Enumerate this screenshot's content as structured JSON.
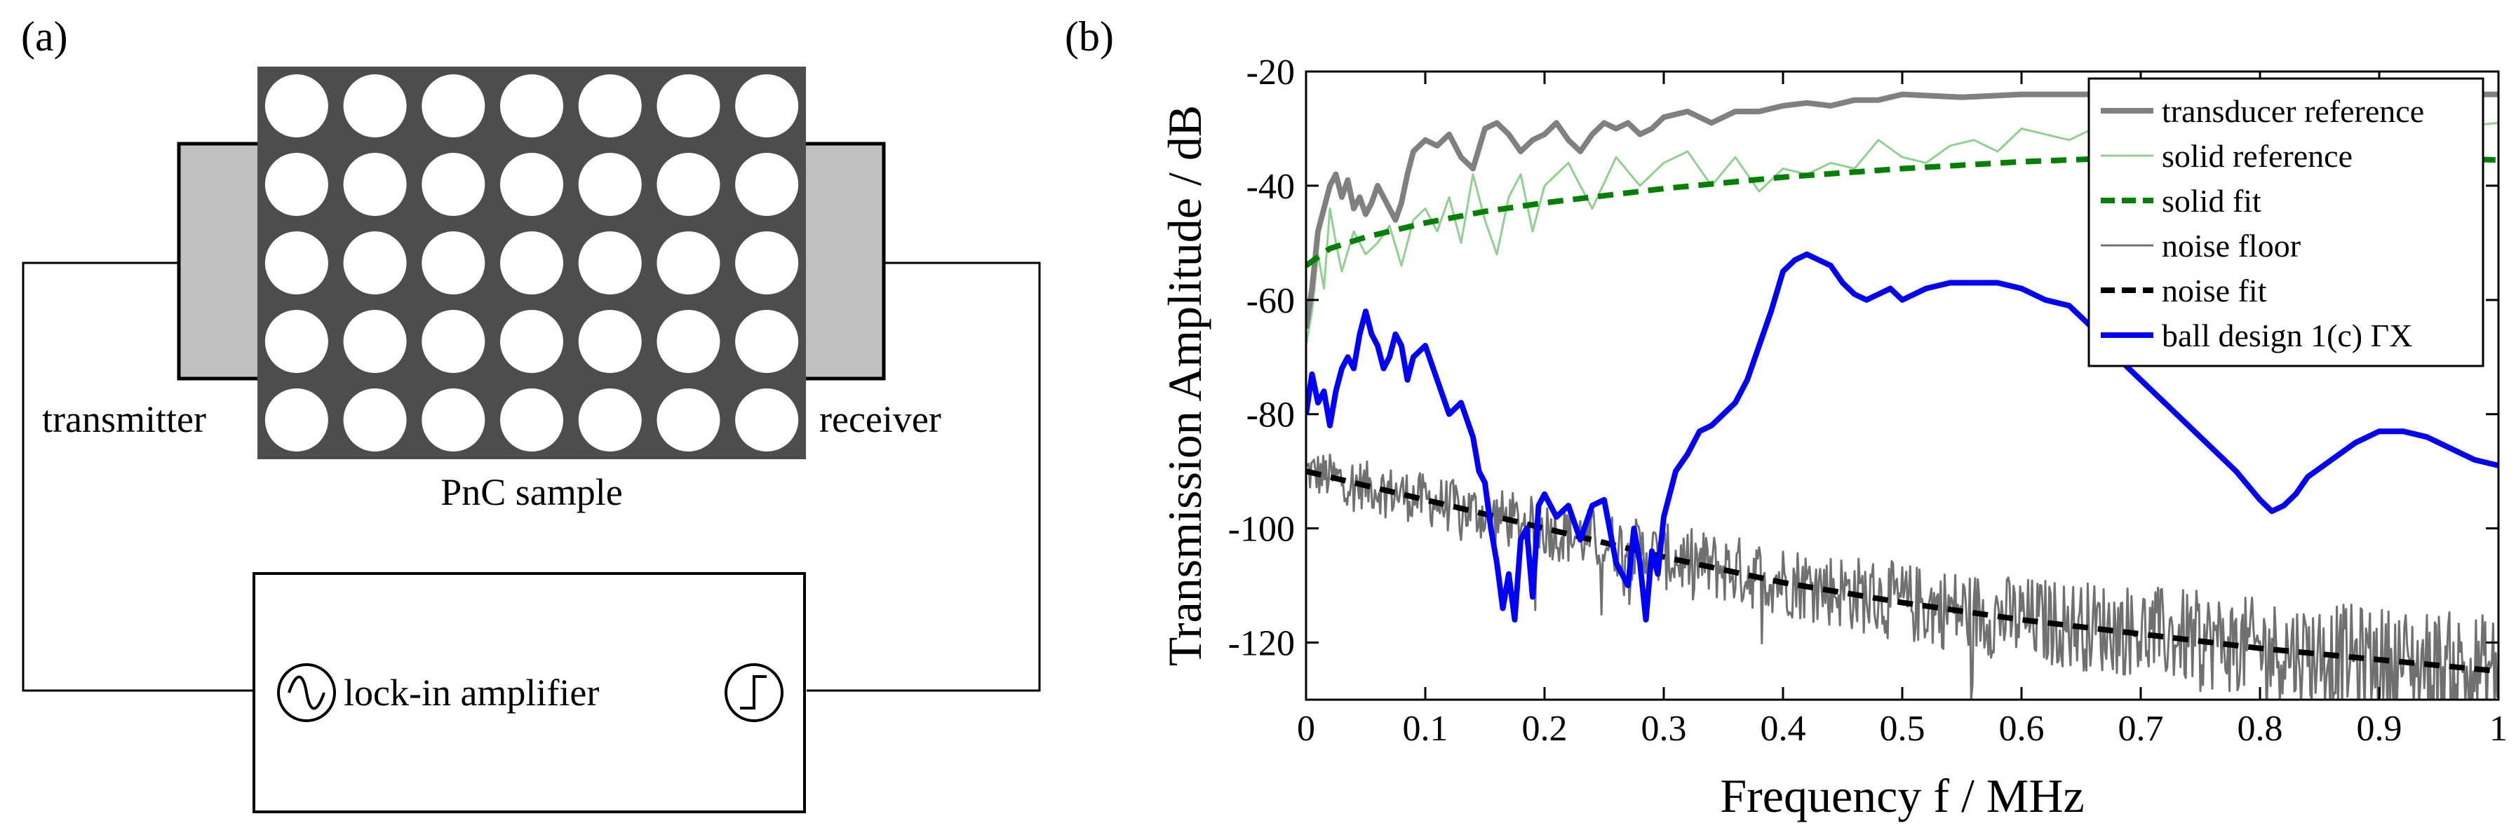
{
  "panel_a": {
    "label": "(a)",
    "transmitter_label": "transmitter",
    "receiver_label": "receiver",
    "sample_label": "PnC sample",
    "amplifier_label": "lock-in amplifier",
    "lattice_rows": 5,
    "lattice_cols": 7,
    "colors": {
      "sample": "#4d4d4d",
      "transducer": "#c0c0c0",
      "hole": "#ffffff",
      "line": "#000000"
    }
  },
  "panel_b": {
    "label": "(b)"
  },
  "chart_data": {
    "type": "line",
    "title": "",
    "xlabel": "Frequency f / MHz",
    "ylabel": "Transmission Amplitude  / dB",
    "xlim": [
      0,
      1
    ],
    "ylim": [
      -130,
      -20
    ],
    "xticks": [
      0,
      0.1,
      0.2,
      0.3,
      0.4,
      0.5,
      0.6,
      0.7,
      0.8,
      0.9,
      1
    ],
    "xtick_labels": [
      "0",
      "0.1",
      "0.2",
      "0.3",
      "0.4",
      "0.5",
      "0.6",
      "0.7",
      "0.8",
      "0.9",
      "1"
    ],
    "yticks": [
      -20,
      -40,
      -60,
      -80,
      -100,
      -120
    ],
    "ytick_labels": [
      "-20",
      "-40",
      "-60",
      "-80",
      "-100",
      "-120"
    ],
    "grid": false,
    "legend_position": "top-right",
    "series": [
      {
        "name": "transducer reference",
        "color": "#808080",
        "style": "solid",
        "width": "thick",
        "x": [
          0,
          0.005,
          0.01,
          0.015,
          0.02,
          0.025,
          0.03,
          0.035,
          0.04,
          0.045,
          0.05,
          0.055,
          0.06,
          0.065,
          0.07,
          0.075,
          0.08,
          0.085,
          0.09,
          0.1,
          0.11,
          0.12,
          0.13,
          0.14,
          0.15,
          0.16,
          0.17,
          0.18,
          0.19,
          0.2,
          0.21,
          0.22,
          0.23,
          0.24,
          0.25,
          0.26,
          0.27,
          0.28,
          0.29,
          0.3,
          0.32,
          0.34,
          0.36,
          0.38,
          0.4,
          0.42,
          0.44,
          0.46,
          0.48,
          0.5,
          0.55,
          0.6,
          0.65,
          0.7,
          0.75,
          0.8,
          0.85,
          0.9,
          0.95,
          1.0
        ],
        "y": [
          -65,
          -58,
          -48,
          -44,
          -40,
          -38,
          -42,
          -39,
          -44,
          -42,
          -45,
          -43,
          -40,
          -42,
          -44,
          -46,
          -43,
          -38,
          -34,
          -32,
          -33,
          -31,
          -35,
          -37,
          -30,
          -29,
          -31,
          -34,
          -32,
          -31,
          -29,
          -32,
          -34,
          -31,
          -29,
          -30,
          -29,
          -31,
          -30,
          -28,
          -27,
          -29,
          -27,
          -27,
          -26,
          -25.5,
          -26,
          -25,
          -25,
          -24,
          -24.5,
          -24,
          -24,
          -24,
          -24,
          -24,
          -24,
          -24,
          -24,
          -24
        ]
      },
      {
        "name": "solid reference",
        "color": "#90d090",
        "style": "solid",
        "width": "thin",
        "x": [
          0,
          0.005,
          0.01,
          0.015,
          0.02,
          0.025,
          0.03,
          0.04,
          0.05,
          0.06,
          0.07,
          0.08,
          0.09,
          0.1,
          0.11,
          0.12,
          0.13,
          0.14,
          0.15,
          0.16,
          0.17,
          0.18,
          0.19,
          0.2,
          0.22,
          0.24,
          0.26,
          0.28,
          0.3,
          0.32,
          0.34,
          0.36,
          0.38,
          0.4,
          0.42,
          0.44,
          0.46,
          0.48,
          0.5,
          0.52,
          0.54,
          0.56,
          0.58,
          0.6,
          0.62,
          0.64,
          0.66,
          0.7,
          0.75,
          0.8,
          0.85,
          0.9,
          0.95,
          1.0
        ],
        "y": [
          -68,
          -62,
          -52,
          -58,
          -44,
          -50,
          -55,
          -48,
          -52,
          -50,
          -47,
          -54,
          -46,
          -44,
          -48,
          -42,
          -50,
          -38,
          -46,
          -52,
          -42,
          -38,
          -48,
          -40,
          -36,
          -44,
          -35,
          -40,
          -36,
          -34,
          -40,
          -35,
          -41,
          -37,
          -38,
          -36,
          -37,
          -32,
          -35,
          -36,
          -33,
          -32,
          -34,
          -30,
          -31,
          -32,
          -30,
          -31,
          -30,
          -30,
          -30,
          -29,
          -30,
          -29
        ]
      },
      {
        "name": "solid fit",
        "color": "#008000",
        "style": "dashed",
        "width": "thick",
        "x": [
          0,
          0.02,
          0.05,
          0.1,
          0.15,
          0.2,
          0.3,
          0.4,
          0.5,
          0.6,
          0.7,
          0.8,
          0.9,
          1.0
        ],
        "y": [
          -54,
          -51,
          -49,
          -46.5,
          -44.5,
          -43,
          -40.5,
          -38.5,
          -37,
          -35.8,
          -35,
          -34.5,
          -34.8,
          -35.5
        ]
      },
      {
        "name": "noise floor",
        "color": "#707070",
        "style": "noisy",
        "width": "thin",
        "x": [
          0,
          0.1,
          0.2,
          0.3,
          0.4,
          0.5,
          0.6,
          0.7,
          0.8,
          0.9,
          1.0
        ],
        "y": [
          -90,
          -95,
          -100,
          -105,
          -109,
          -113,
          -116,
          -118,
          -121,
          -123,
          -125
        ]
      },
      {
        "name": "noise fit",
        "color": "#000000",
        "style": "dashed",
        "width": "thick",
        "x": [
          0,
          0.1,
          0.2,
          0.3,
          0.4,
          0.5,
          0.6,
          0.7,
          0.8,
          0.9,
          1.0
        ],
        "y": [
          -90,
          -95,
          -100,
          -105,
          -109.5,
          -113,
          -116,
          -118.5,
          -121,
          -123,
          -125
        ]
      },
      {
        "name": "ball design 1(c) ΓX",
        "color": "#0000ff",
        "style": "solid",
        "width": "thick",
        "x": [
          0,
          0.005,
          0.01,
          0.015,
          0.02,
          0.025,
          0.03,
          0.035,
          0.04,
          0.045,
          0.05,
          0.055,
          0.06,
          0.065,
          0.07,
          0.075,
          0.08,
          0.085,
          0.09,
          0.1,
          0.11,
          0.12,
          0.13,
          0.14,
          0.145,
          0.15,
          0.155,
          0.16,
          0.165,
          0.17,
          0.175,
          0.18,
          0.185,
          0.19,
          0.195,
          0.2,
          0.21,
          0.22,
          0.23,
          0.24,
          0.25,
          0.26,
          0.27,
          0.275,
          0.28,
          0.285,
          0.29,
          0.295,
          0.3,
          0.31,
          0.32,
          0.33,
          0.34,
          0.35,
          0.36,
          0.37,
          0.38,
          0.39,
          0.4,
          0.41,
          0.42,
          0.43,
          0.44,
          0.45,
          0.46,
          0.47,
          0.48,
          0.49,
          0.5,
          0.52,
          0.54,
          0.56,
          0.58,
          0.6,
          0.62,
          0.64,
          0.66,
          0.68,
          0.7,
          0.72,
          0.74,
          0.76,
          0.78,
          0.8,
          0.81,
          0.82,
          0.83,
          0.84,
          0.86,
          0.88,
          0.9,
          0.92,
          0.94,
          0.96,
          0.98,
          1.0
        ],
        "y": [
          -80,
          -73,
          -78,
          -76,
          -82,
          -76,
          -72,
          -70,
          -72,
          -66,
          -62,
          -66,
          -68,
          -72,
          -70,
          -66,
          -68,
          -74,
          -70,
          -68,
          -74,
          -80,
          -78,
          -84,
          -90,
          -92,
          -100,
          -106,
          -114,
          -108,
          -116,
          -102,
          -100,
          -112,
          -96,
          -94,
          -98,
          -96,
          -102,
          -96,
          -95,
          -106,
          -110,
          -100,
          -106,
          -116,
          -104,
          -108,
          -98,
          -90,
          -87,
          -83,
          -82,
          -80,
          -78,
          -74,
          -68,
          -62,
          -55,
          -53,
          -52,
          -53,
          -54,
          -57,
          -59,
          -60,
          -59,
          -58,
          -60,
          -58,
          -57,
          -57,
          -57,
          -58,
          -60,
          -61,
          -65,
          -70,
          -74,
          -78,
          -82,
          -86,
          -90,
          -95,
          -97,
          -96,
          -94,
          -91,
          -88,
          -85,
          -83,
          -83,
          -84,
          -86,
          -88,
          -89
        ]
      }
    ]
  }
}
